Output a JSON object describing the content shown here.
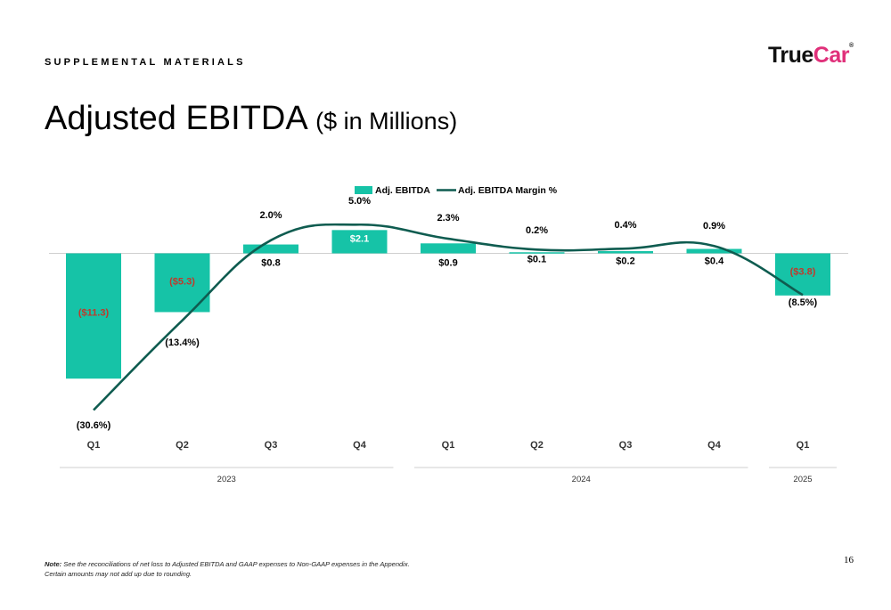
{
  "header": {
    "supplemental": "SUPPLEMENTAL MATERIALS",
    "logo_true": "True",
    "logo_car": "Car",
    "logo_reg": "®"
  },
  "title": {
    "main": "Adjusted EBITDA",
    "sub": "($ in Millions)"
  },
  "note": {
    "label": "Note:",
    "line1": "See the reconciliations of net loss to Adjusted EBITDA and GAAP expenses to Non-GAAP expenses in the Appendix.",
    "line2": "Certain amounts may not add up due to rounding."
  },
  "page_number": "16",
  "colors": {
    "bar": "#16c3a7",
    "line": "#0f5c50",
    "negative_label": "#c0392b",
    "axis": "#cfcfcf"
  },
  "chart_data": {
    "type": "bar",
    "categories": [
      "Q1",
      "Q2",
      "Q3",
      "Q4",
      "Q1",
      "Q2",
      "Q3",
      "Q4",
      "Q1"
    ],
    "groups": [
      {
        "label": "2023",
        "span": [
          0,
          3
        ]
      },
      {
        "label": "2024",
        "span": [
          4,
          7
        ]
      },
      {
        "label": "2025",
        "span": [
          8,
          8
        ]
      }
    ],
    "series": [
      {
        "name": "Adj. EBITDA",
        "type": "bar",
        "values": [
          -11.3,
          -5.3,
          0.8,
          2.1,
          0.9,
          0.1,
          0.2,
          0.4,
          -3.8
        ],
        "labels": [
          "($11.3)",
          "($5.3)",
          "$0.8",
          "$2.1",
          "$0.9",
          "$0.1",
          "$0.2",
          "$0.4",
          "($3.8)"
        ]
      },
      {
        "name": "Adj. EBITDA Margin %",
        "type": "line",
        "values": [
          -30.6,
          -13.4,
          2.0,
          5.0,
          2.3,
          0.2,
          0.4,
          0.9,
          -8.5
        ],
        "labels": [
          "(30.6%)",
          "(13.4%)",
          "2.0%",
          "5.0%",
          "2.3%",
          "0.2%",
          "0.4%",
          "0.9%",
          "(8.5%)"
        ]
      }
    ],
    "legend_position": "top-center",
    "grid": false
  }
}
